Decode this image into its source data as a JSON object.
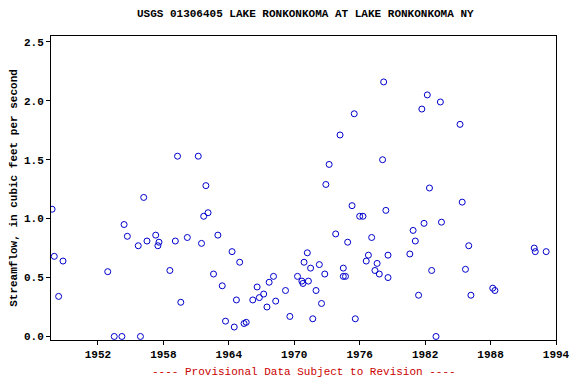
{
  "chart_data": {
    "type": "scatter",
    "title": "USGS 01306405 LAKE RONKONKOMA AT LAKE RONKONKOMA NY",
    "y_label": "Streamflow, in cubic feet per second",
    "annotations": [
      "---- Provisional Data Subject to Revision ----"
    ],
    "color": "#0000cc",
    "marker": "circle-open",
    "grid": false,
    "x": [
      1947.8,
      1948.0,
      1948.4,
      1948.8,
      1952.9,
      1953.5,
      1954.2,
      1954.4,
      1954.7,
      1955.7,
      1955.9,
      1956.2,
      1956.5,
      1957.3,
      1957.5,
      1957.6,
      1958.6,
      1959.1,
      1959.3,
      1959.6,
      1960.2,
      1961.2,
      1961.5,
      1961.7,
      1961.9,
      1962.1,
      1962.6,
      1963.0,
      1963.4,
      1963.7,
      1964.3,
      1964.5,
      1964.7,
      1965.0,
      1965.4,
      1965.6,
      1966.2,
      1966.6,
      1966.8,
      1967.2,
      1967.5,
      1967.7,
      1968.1,
      1968.3,
      1969.2,
      1969.6,
      1970.3,
      1970.7,
      1970.8,
      1970.9,
      1971.2,
      1971.3,
      1971.5,
      1971.7,
      1972.0,
      1972.3,
      1972.5,
      1972.8,
      1972.9,
      1973.2,
      1973.8,
      1974.2,
      1974.5,
      1974.5,
      1974.7,
      1974.9,
      1975.3,
      1975.5,
      1975.6,
      1976.0,
      1976.3,
      1976.6,
      1976.8,
      1977.1,
      1977.4,
      1977.6,
      1977.8,
      1978.1,
      1978.2,
      1978.4,
      1978.6,
      1978.6,
      1980.6,
      1980.9,
      1981.1,
      1981.4,
      1981.7,
      1981.9,
      1982.2,
      1982.4,
      1982.6,
      1983.0,
      1983.4,
      1983.5,
      1985.2,
      1985.4,
      1985.7,
      1986.0,
      1986.2,
      1988.2,
      1988.4,
      1992.0,
      1992.1,
      1993.1
    ],
    "values": [
      1.08,
      0.68,
      0.34,
      0.64,
      0.55,
      0.0,
      0.0,
      0.95,
      0.85,
      0.77,
      0.0,
      1.18,
      0.81,
      0.86,
      0.77,
      0.8,
      0.56,
      0.81,
      1.53,
      0.29,
      0.84,
      1.53,
      0.79,
      1.02,
      1.28,
      1.05,
      0.53,
      0.86,
      0.43,
      0.13,
      0.72,
      0.08,
      0.31,
      0.63,
      0.11,
      0.12,
      0.31,
      0.42,
      0.33,
      0.36,
      0.25,
      0.46,
      0.51,
      0.3,
      0.39,
      0.17,
      0.51,
      0.47,
      0.45,
      0.63,
      0.71,
      0.47,
      0.58,
      0.15,
      0.39,
      0.61,
      0.28,
      0.53,
      1.29,
      1.46,
      0.87,
      1.71,
      0.58,
      0.51,
      0.51,
      0.8,
      1.11,
      1.89,
      0.15,
      1.02,
      1.02,
      0.64,
      0.69,
      0.84,
      0.56,
      0.62,
      0.53,
      1.5,
      2.16,
      1.07,
      0.69,
      0.5,
      0.7,
      0.9,
      0.81,
      0.35,
      1.93,
      0.96,
      2.05,
      1.26,
      0.56,
      0.0,
      1.99,
      0.97,
      1.8,
      1.14,
      0.57,
      0.77,
      0.35,
      0.41,
      0.39,
      0.75,
      0.72,
      0.72
    ],
    "xlim": [
      1947.7,
      1994.0
    ],
    "xticks": [
      1952,
      1958,
      1964,
      1970,
      1976,
      1982,
      1988,
      1994
    ],
    "ylim": [
      -0.03,
      2.55
    ],
    "yticks": [
      {
        "value": 0,
        "label": "0.0"
      },
      0.5,
      {
        "value": 1,
        "label": "1.0"
      },
      1.5,
      {
        "value": 2,
        "label": "2.0"
      },
      2.5
    ]
  }
}
